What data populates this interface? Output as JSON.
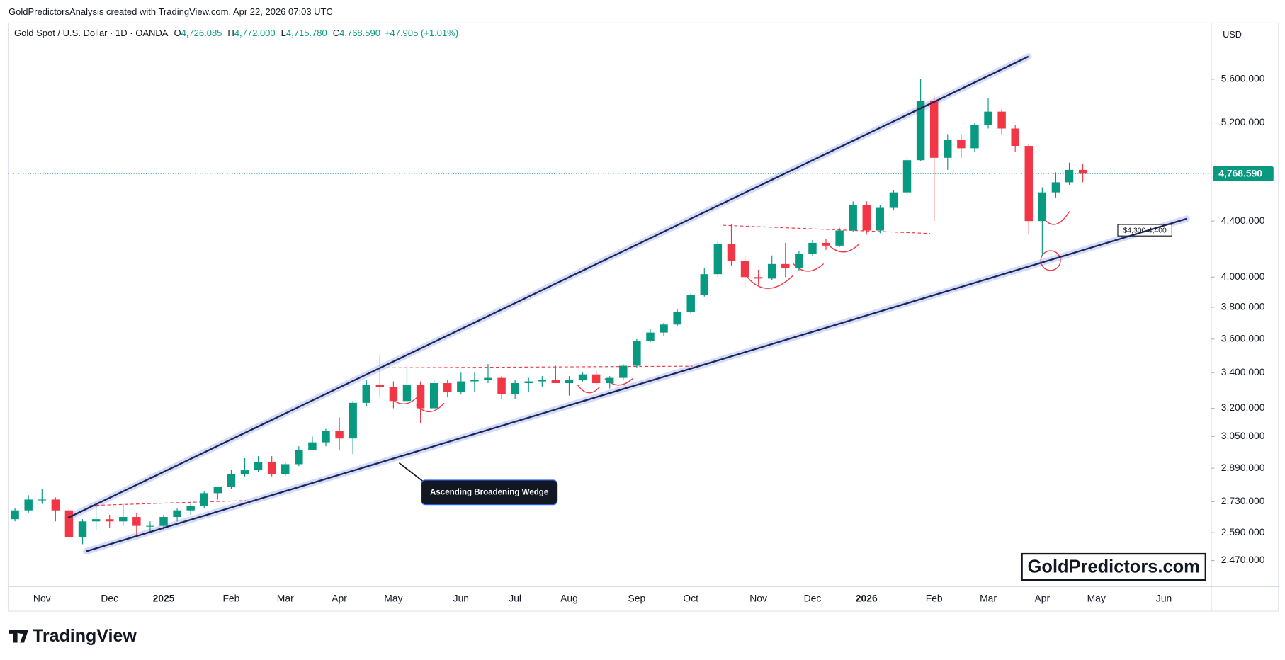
{
  "header": {
    "credit": "GoldPredictorsAnalysis created with TradingView.com, Apr 22, 2026 07:03 UTC",
    "symbol": "Gold Spot / U.S. Dollar · 1D · OANDA",
    "ohlc": [
      {
        "key": "O",
        "value": "4,726.085"
      },
      {
        "key": "H",
        "value": "4,772.000"
      },
      {
        "key": "L",
        "value": "4,715.780"
      },
      {
        "key": "C",
        "value": "4,768.590"
      }
    ],
    "change": "+47.905 (+1.01%)"
  },
  "footer": {
    "brand": "TradingView"
  },
  "chart_data": {
    "type": "candlestick",
    "currency": "USD",
    "log_scale": true,
    "grid": false,
    "up_color": "#089981",
    "down_color": "#f23645",
    "ylim": [
      2363,
      6163
    ],
    "yticks": [
      {
        "value": 2470,
        "label": "2,470.000"
      },
      {
        "value": 2590,
        "label": "2,590.000"
      },
      {
        "value": 2730,
        "label": "2,730.000"
      },
      {
        "value": 2890,
        "label": "2,890.000"
      },
      {
        "value": 3050,
        "label": "3,050.000"
      },
      {
        "value": 3200,
        "label": "3,200.000"
      },
      {
        "value": 3400,
        "label": "3,400.000"
      },
      {
        "value": 3600,
        "label": "3,600.000"
      },
      {
        "value": 3800,
        "label": "3,800.000"
      },
      {
        "value": 4000,
        "label": "4,000.000"
      },
      {
        "value": 4400,
        "label": "4,400.000"
      },
      {
        "value": 5200,
        "label": "5,200.000"
      },
      {
        "value": 5600,
        "label": "5,600.000"
      }
    ],
    "last_price": {
      "value": 4768.59,
      "label": "4,768.590"
    },
    "annotations": {
      "pattern": "Ascending Broadening Wedge",
      "zone": "$4,300-4,400",
      "watermark": "GoldPredictors.com"
    },
    "categories": [
      null,
      null,
      "Nov",
      null,
      null,
      null,
      null,
      "Dec",
      null,
      null,
      null,
      "2025",
      null,
      null,
      null,
      null,
      "Feb",
      null,
      null,
      null,
      "Mar",
      null,
      null,
      null,
      "Apr",
      null,
      null,
      null,
      "May",
      null,
      null,
      null,
      null,
      "Jun",
      null,
      null,
      null,
      "Jul",
      null,
      null,
      null,
      "Aug",
      null,
      null,
      null,
      null,
      "Sep",
      null,
      null,
      null,
      "Oct",
      null,
      null,
      null,
      null,
      "Nov",
      null,
      null,
      null,
      "Dec",
      null,
      null,
      null,
      "2026",
      null,
      null,
      null,
      null,
      "Feb",
      null,
      null,
      null,
      "Mar",
      null,
      null,
      null,
      "Apr",
      null,
      null,
      null,
      "May",
      null,
      null,
      null,
      null,
      "Jun",
      null,
      null,
      null
    ],
    "open": [
      2650,
      2690,
      2740,
      2740,
      2690,
      2570,
      2640,
      2650,
      2640,
      2660,
      2620,
      2620,
      2660,
      2690,
      2710,
      2770,
      2800,
      2860,
      2880,
      2920,
      2860,
      2910,
      2980,
      3020,
      3080,
      3040,
      3230,
      3330,
      3320,
      3240,
      3330,
      3200,
      3340,
      3290,
      3350,
      3360,
      3370,
      3280,
      3340,
      3350,
      3360,
      3340,
      3360,
      3390,
      3340,
      3370,
      3440,
      3590,
      3640,
      3690,
      3770,
      3880,
      4020,
      4230,
      4110,
      4000,
      3990,
      4090,
      4060,
      4160,
      4240,
      4220,
      4330,
      4520,
      4330,
      4500,
      4620,
      4880,
      5400,
      4900,
      5050,
      4980,
      5180,
      5300,
      5150,
      5000,
      4400,
      4620,
      4700,
      4800,
      null,
      null,
      null,
      null,
      null,
      null,
      null,
      null,
      null
    ],
    "high": [
      2700,
      2760,
      2790,
      2750,
      2700,
      2650,
      2720,
      2670,
      2720,
      2680,
      2640,
      2670,
      2700,
      2720,
      2780,
      2800,
      2880,
      2940,
      2950,
      2950,
      2920,
      3000,
      3050,
      3090,
      3150,
      3240,
      3360,
      3500,
      3350,
      3440,
      3350,
      3360,
      3360,
      3400,
      3400,
      3450,
      3380,
      3360,
      3370,
      3380,
      3440,
      3380,
      3400,
      3410,
      3380,
      3450,
      3600,
      3660,
      3700,
      3790,
      3890,
      4060,
      4250,
      4380,
      4150,
      4050,
      4150,
      4240,
      4180,
      4260,
      4270,
      4350,
      4550,
      4550,
      4520,
      4640,
      4900,
      5600,
      5450,
      5100,
      5100,
      5200,
      5420,
      5320,
      5180,
      5020,
      4660,
      4780,
      4860,
      4850,
      null,
      null,
      null,
      null,
      null,
      null,
      null,
      null,
      null
    ],
    "low": [
      2640,
      2680,
      2720,
      2640,
      2570,
      2540,
      2600,
      2610,
      2620,
      2580,
      2590,
      2600,
      2640,
      2670,
      2700,
      2740,
      2790,
      2850,
      2870,
      2850,
      2850,
      2900,
      2980,
      3000,
      2980,
      2960,
      3210,
      3260,
      3200,
      3230,
      3120,
      3200,
      3260,
      3280,
      3290,
      3340,
      3250,
      3250,
      3290,
      3320,
      3350,
      3270,
      3350,
      3330,
      3310,
      3360,
      3430,
      3580,
      3620,
      3680,
      3760,
      3870,
      4000,
      4080,
      3930,
      3950,
      3980,
      4000,
      4040,
      4150,
      4190,
      4210,
      4320,
      4300,
      4310,
      4480,
      4600,
      4870,
      4400,
      4800,
      4900,
      4950,
      5150,
      5100,
      4950,
      4300,
      4150,
      4580,
      4680,
      4700,
      null,
      null,
      null,
      null,
      null,
      null,
      null,
      null,
      null
    ],
    "close": [
      2690,
      2740,
      2740,
      2690,
      2570,
      2640,
      2650,
      2640,
      2660,
      2620,
      2620,
      2660,
      2690,
      2710,
      2770,
      2800,
      2860,
      2880,
      2920,
      2860,
      2910,
      2980,
      3020,
      3080,
      3040,
      3230,
      3330,
      3320,
      3240,
      3330,
      3200,
      3340,
      3290,
      3350,
      3360,
      3370,
      3280,
      3340,
      3350,
      3360,
      3340,
      3360,
      3390,
      3340,
      3370,
      3440,
      3590,
      3640,
      3690,
      3770,
      3880,
      4020,
      4230,
      4110,
      4000,
      3990,
      4090,
      4060,
      4160,
      4240,
      4220,
      4330,
      4520,
      4330,
      4500,
      4620,
      4880,
      5400,
      4900,
      5050,
      4980,
      5180,
      5300,
      5150,
      5000,
      4400,
      4620,
      4700,
      4800,
      4768.59,
      null,
      null,
      null,
      null,
      null,
      null,
      null,
      null,
      null
    ]
  }
}
